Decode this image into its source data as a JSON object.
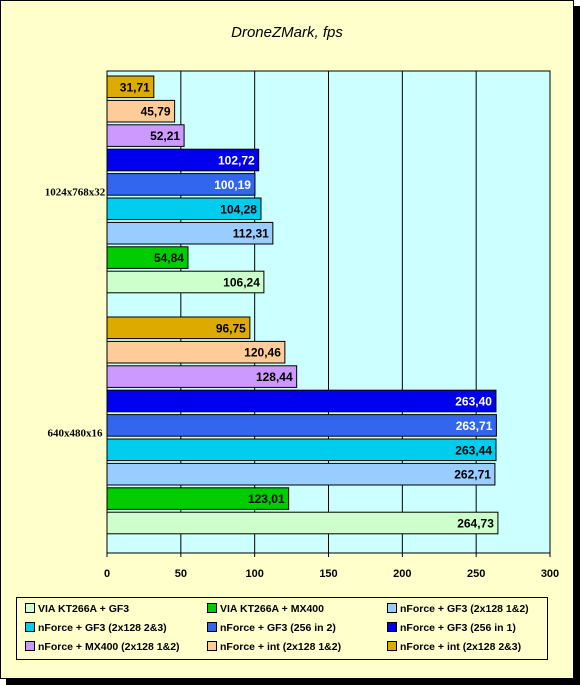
{
  "chart_data": {
    "type": "bar",
    "orientation": "horizontal",
    "title": "DroneZMark, fps",
    "categories": [
      "1024x768x32",
      "640x480x16"
    ],
    "xlim": [
      0,
      300
    ],
    "xticks": [
      "0",
      "50",
      "100",
      "150",
      "200",
      "250",
      "300"
    ],
    "grid": true,
    "legend_position": "bottom",
    "series": [
      {
        "name": "VIA KT266A + GF3",
        "color": "#ccffcc",
        "values": [
          106.24,
          264.73
        ],
        "labels": [
          "106,24",
          "264,73"
        ]
      },
      {
        "name": "VIA KT266A + MX400",
        "color": "#00cc00",
        "values": [
          54.84,
          123.01
        ],
        "labels": [
          "54,84",
          "123,01"
        ]
      },
      {
        "name": "nForce + GF3 (2x128 1&2)",
        "color": "#99ccff",
        "values": [
          112.31,
          262.71
        ],
        "labels": [
          "112,31",
          "262,71"
        ]
      },
      {
        "name": "nForce + GF3 (2x128 2&3)",
        "color": "#00ccee",
        "values": [
          104.28,
          263.44
        ],
        "labels": [
          "104,28",
          "263,44"
        ]
      },
      {
        "name": "nForce + GF3 (256 in 2)",
        "color": "#3366ee",
        "values": [
          100.19,
          263.71
        ],
        "labels": [
          "100,19",
          "263,71"
        ]
      },
      {
        "name": "nForce + GF3 (256 in 1)",
        "color": "#0000ee",
        "values": [
          102.72,
          263.4
        ],
        "labels": [
          "102,72",
          "263,40"
        ]
      },
      {
        "name": "nForce + MX400 (2x128 1&2)",
        "color": "#cc99ff",
        "values": [
          52.21,
          128.44
        ],
        "labels": [
          "52,21",
          "128,44"
        ]
      },
      {
        "name": "nForce + int (2x128 1&2)",
        "color": "#ffcc99",
        "values": [
          45.79,
          120.46
        ],
        "labels": [
          "45,79",
          "120,46"
        ]
      },
      {
        "name": "nForce + int (2x128 2&3)",
        "color": "#ddaa00",
        "values": [
          31.71,
          96.75
        ],
        "labels": [
          "31,71",
          "96,75"
        ]
      }
    ]
  }
}
